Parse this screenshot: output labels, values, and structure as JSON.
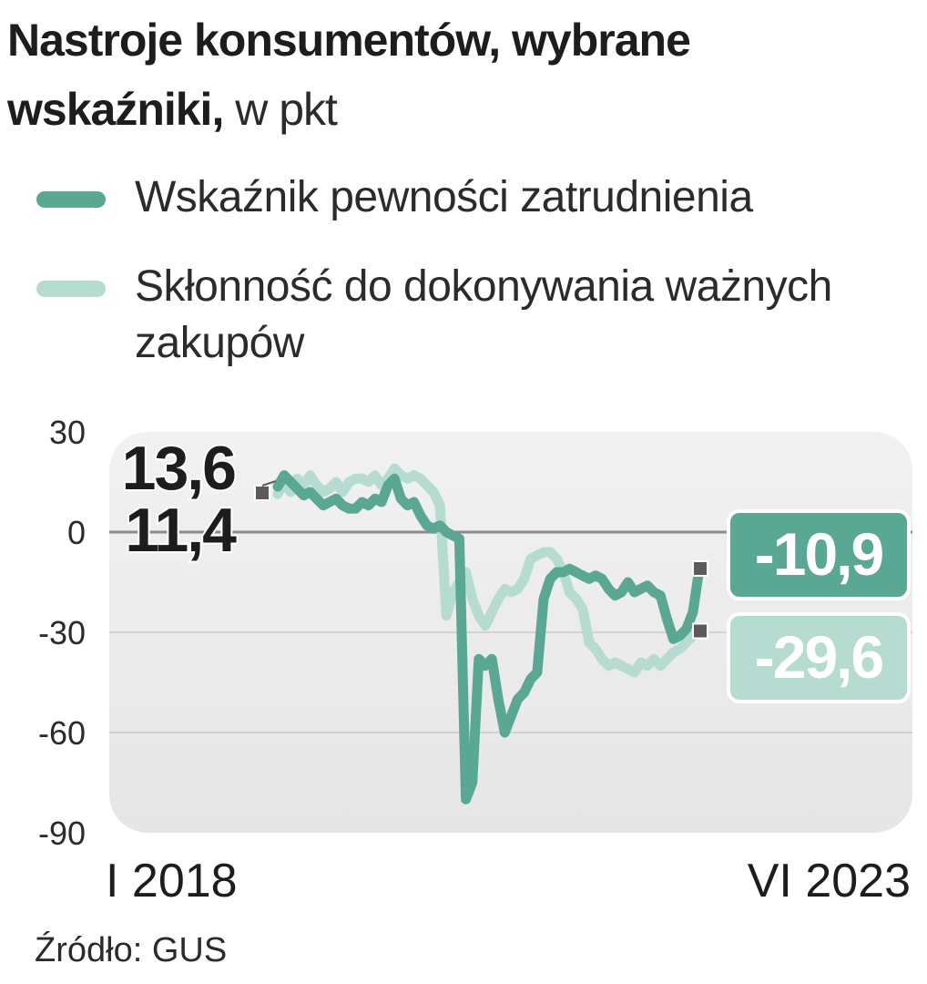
{
  "title": {
    "bold_part": "Nastroje konsumentów, wybrane wskaźniki,",
    "unit_part": " w pkt"
  },
  "legend": [
    {
      "label": "Wskaźnik pewności zatrudnienia",
      "color": "#5aa894"
    },
    {
      "label": "Skłonność do dokonywania ważnych zakupów",
      "color": "#b6dcd2"
    }
  ],
  "source": "Źródło: GUS",
  "chart_data": {
    "type": "line",
    "ylim": [
      -90,
      30
    ],
    "y_ticks": [
      "30",
      "0",
      "-30",
      "-60",
      "-90"
    ],
    "x_start_label": "I 2018",
    "x_end_label": "VI 2023",
    "x_start": "2018-01",
    "x_end": "2023-06",
    "grid": true,
    "start_labels": [
      "13,6",
      "11,4"
    ],
    "series": [
      {
        "name": "Wskaźnik pewności zatrudnienia",
        "color": "#5aa894",
        "end_label": "-10,9",
        "values": [
          13.6,
          17,
          15,
          13,
          11,
          12,
          10,
          8,
          9,
          10,
          8,
          7,
          7,
          9,
          8,
          10,
          9,
          14,
          16,
          10,
          8,
          9,
          5,
          2,
          1,
          2,
          0,
          -1,
          -2,
          -80,
          -75,
          -38,
          -40,
          -38,
          -50,
          -60,
          -55,
          -50,
          -48,
          -44,
          -42,
          -20,
          -14,
          -12,
          -12,
          -11,
          -12,
          -13,
          -14,
          -13,
          -14,
          -17,
          -19,
          -18,
          -15,
          -18,
          -17,
          -16,
          -18,
          -19,
          -26,
          -32,
          -31,
          -29,
          -24,
          -10.9
        ]
      },
      {
        "name": "Skłonność do dokonywania ważnych zakupów",
        "color": "#b6dcd2",
        "end_label": "-29,6",
        "values": [
          11.4,
          15,
          12,
          16,
          14,
          17,
          14,
          12,
          13,
          15,
          12,
          15,
          16,
          16,
          15,
          17,
          14,
          16,
          19,
          17,
          16,
          17,
          16,
          14,
          12,
          8,
          -25,
          -18,
          -15,
          -12,
          -20,
          -25,
          -28,
          -24,
          -20,
          -17,
          -18,
          -17,
          -14,
          -8,
          -7,
          -6,
          -6,
          -8,
          -12,
          -18,
          -20,
          -23,
          -33,
          -35,
          -38,
          -40,
          -39,
          -40,
          -41,
          -42,
          -39,
          -40,
          -38,
          -40,
          -38,
          -36,
          -35,
          -33,
          -31,
          -29.6
        ]
      }
    ]
  }
}
